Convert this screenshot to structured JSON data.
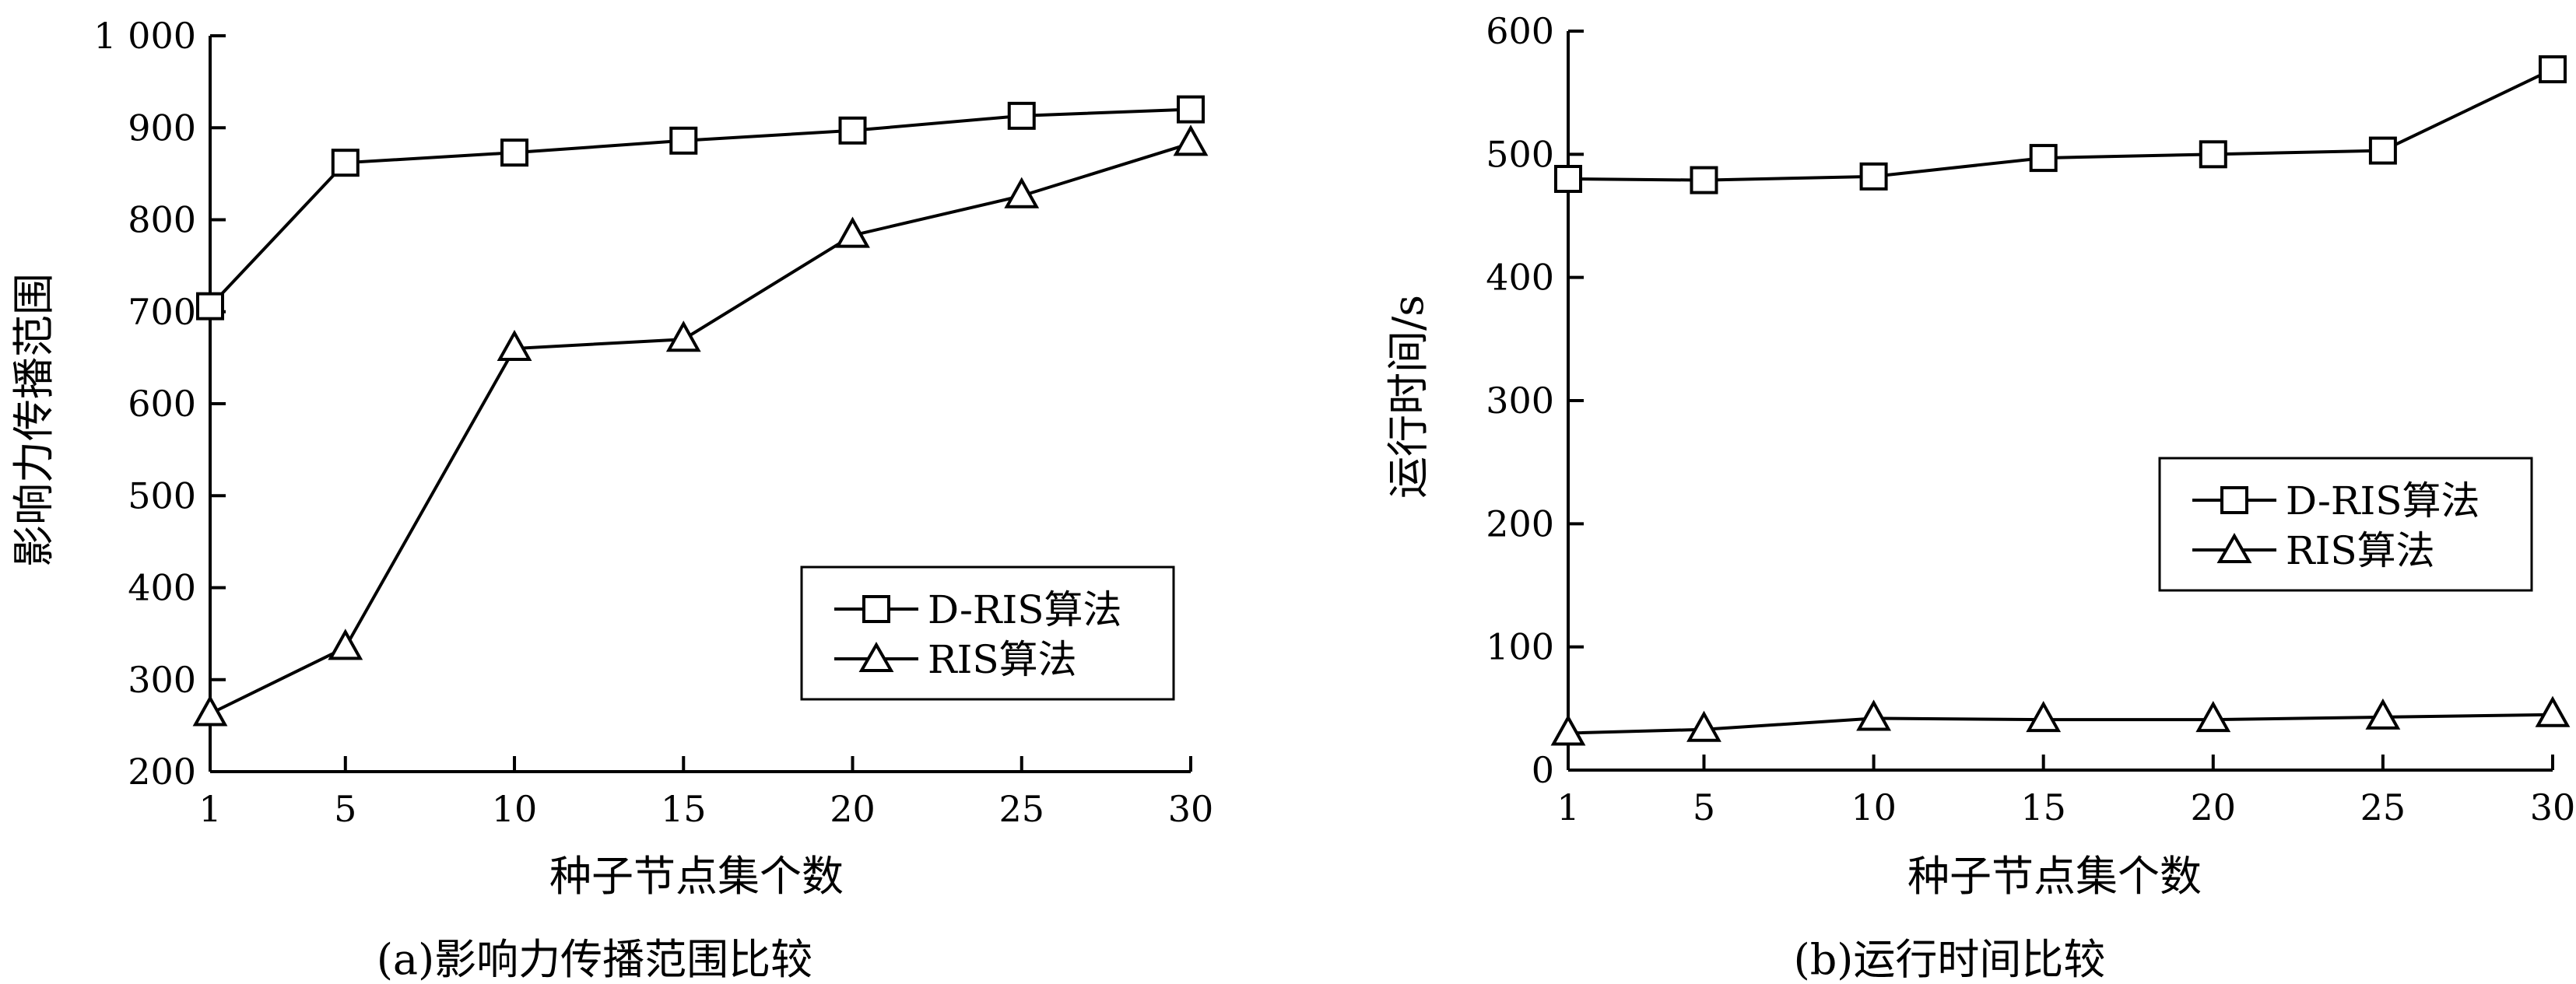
{
  "chart_data": [
    {
      "type": "line",
      "caption": "(a)影响力传播范围比较",
      "xlabel": "种子节点集个数",
      "ylabel": "影响力传播范围",
      "x": [
        1,
        5,
        10,
        15,
        20,
        25,
        30
      ],
      "x_ticks": [
        "1",
        "5",
        "10",
        "15",
        "20",
        "25",
        "30"
      ],
      "ylim": [
        200,
        1000
      ],
      "y_ticks": [
        200,
        300,
        400,
        500,
        600,
        700,
        800,
        900,
        1000
      ],
      "y_tick_labels": [
        "200",
        "300",
        "400",
        "500",
        "600",
        "700",
        "800",
        "900",
        "1 000"
      ],
      "legend_position": "lower-right",
      "grid": false,
      "series": [
        {
          "name": "D-RIS算法",
          "marker": "square",
          "values": [
            706,
            862,
            873,
            886,
            897,
            913,
            920
          ]
        },
        {
          "name": "RIS算法",
          "marker": "triangle",
          "values": [
            263,
            335,
            660,
            670,
            783,
            826,
            883
          ]
        }
      ]
    },
    {
      "type": "line",
      "caption": "(b)运行时间比较",
      "xlabel": "种子节点集个数",
      "ylabel": "运行时间/s",
      "x": [
        1,
        5,
        10,
        15,
        20,
        25,
        30
      ],
      "x_ticks": [
        "1",
        "5",
        "10",
        "15",
        "20",
        "25",
        "30"
      ],
      "ylim": [
        0,
        600
      ],
      "y_ticks": [
        0,
        100,
        200,
        300,
        400,
        500,
        600
      ],
      "y_tick_labels": [
        "0",
        "100",
        "200",
        "300",
        "400",
        "500",
        "600"
      ],
      "legend_position": "center-right",
      "grid": false,
      "series": [
        {
          "name": "D-RIS算法",
          "marker": "square",
          "values": [
            480,
            479,
            482,
            497,
            500,
            503,
            569
          ]
        },
        {
          "name": "RIS算法",
          "marker": "triangle",
          "values": [
            30,
            33,
            42,
            41,
            41,
            43,
            45
          ]
        }
      ]
    }
  ]
}
